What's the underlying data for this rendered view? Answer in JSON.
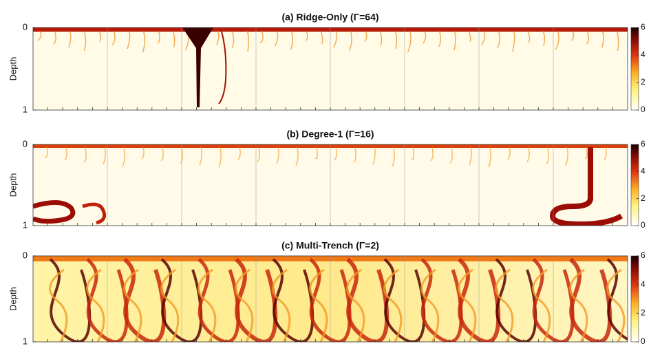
{
  "chart_data": [
    {
      "type": "heatmap",
      "title": "(a) Ridge-Only (Γ=64)",
      "ylabel": "Depth",
      "ylim": [
        0,
        1
      ],
      "yticks": [
        0,
        1
      ],
      "y_reversed": true,
      "clim": [
        0,
        6
      ],
      "cticks": [
        0,
        2,
        4,
        6
      ],
      "colormap": "hot-reversed"
    },
    {
      "type": "heatmap",
      "title": "(b) Degree-1 (Γ=16)",
      "ylabel": "Depth",
      "ylim": [
        0,
        1
      ],
      "yticks": [
        0,
        1
      ],
      "y_reversed": true,
      "clim": [
        0,
        6
      ],
      "cticks": [
        0,
        2,
        4,
        6
      ],
      "colormap": "hot-reversed"
    },
    {
      "type": "heatmap",
      "title": "(c) Multi-Trench (Γ=2)",
      "ylabel": "Depth",
      "ylim": [
        0,
        1
      ],
      "yticks": [
        0,
        1
      ],
      "y_reversed": true,
      "clim": [
        0,
        6
      ],
      "cticks": [
        0,
        2,
        4,
        6
      ],
      "colormap": "hot-reversed"
    }
  ]
}
